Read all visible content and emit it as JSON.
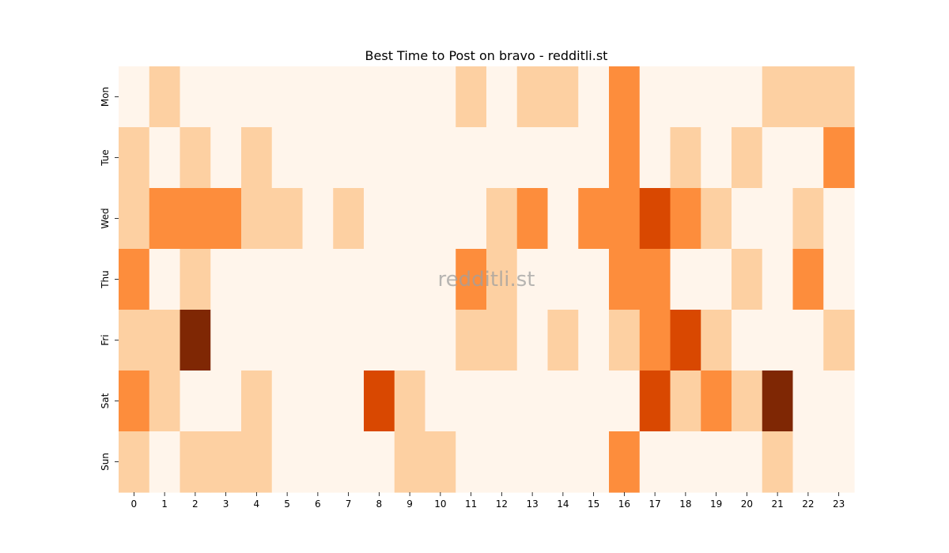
{
  "chart_data": {
    "type": "heatmap",
    "title": "Best Time to Post on bravo - redditli.st",
    "watermark": "redditli.st",
    "xlabel": "",
    "ylabel": "",
    "x_labels": [
      "0",
      "1",
      "2",
      "3",
      "4",
      "5",
      "6",
      "7",
      "8",
      "9",
      "10",
      "11",
      "12",
      "13",
      "14",
      "15",
      "16",
      "17",
      "18",
      "19",
      "20",
      "21",
      "22",
      "23"
    ],
    "y_labels": [
      "Mon",
      "Tue",
      "Wed",
      "Thu",
      "Fri",
      "Sat",
      "Sun"
    ],
    "values": [
      [
        0,
        1,
        0,
        0,
        0,
        0,
        0,
        0,
        0,
        0,
        0,
        1,
        0,
        1,
        1,
        0,
        2,
        0,
        0,
        0,
        0,
        1,
        1,
        1
      ],
      [
        1,
        0,
        1,
        0,
        1,
        0,
        0,
        0,
        0,
        0,
        0,
        0,
        0,
        0,
        0,
        0,
        2,
        0,
        1,
        0,
        1,
        0,
        0,
        2
      ],
      [
        1,
        2,
        2,
        2,
        1,
        1,
        0,
        1,
        0,
        0,
        0,
        0,
        1,
        2,
        0,
        2,
        2,
        3,
        2,
        1,
        0,
        0,
        1,
        0
      ],
      [
        2,
        0,
        1,
        0,
        0,
        0,
        0,
        0,
        0,
        0,
        0,
        2,
        1,
        0,
        0,
        0,
        2,
        2,
        0,
        0,
        1,
        0,
        2,
        0
      ],
      [
        1,
        1,
        4,
        0,
        0,
        0,
        0,
        0,
        0,
        0,
        0,
        1,
        1,
        0,
        1,
        0,
        1,
        2,
        3,
        1,
        0,
        0,
        0,
        1
      ],
      [
        2,
        1,
        0,
        0,
        1,
        0,
        0,
        0,
        3,
        1,
        0,
        0,
        0,
        0,
        0,
        0,
        0,
        3,
        1,
        2,
        1,
        4,
        0,
        0
      ],
      [
        1,
        0,
        1,
        1,
        1,
        0,
        0,
        0,
        0,
        1,
        1,
        0,
        0,
        0,
        0,
        0,
        2,
        0,
        0,
        0,
        0,
        1,
        0,
        0
      ]
    ],
    "colors": [
      "#fff5eb",
      "#fdd0a2",
      "#fd8d3c",
      "#d94801",
      "#7f2704"
    ],
    "grid": false,
    "legend": "none"
  }
}
